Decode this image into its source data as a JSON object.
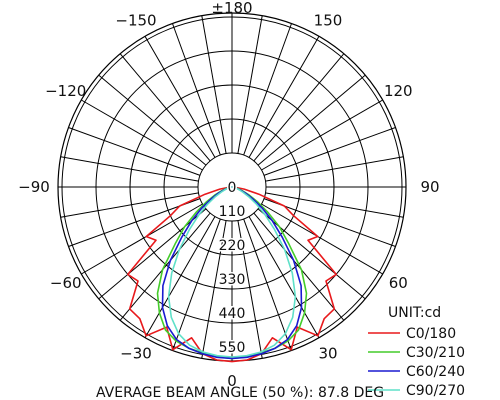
{
  "chart_data": {
    "type": "polar",
    "unit_label": "UNIT:cd",
    "footer": "AVERAGE BEAM ANGLE (50 %): 87.8 DEG",
    "angle_labels": [
      {
        "angle": 180,
        "text": "±180"
      },
      {
        "angle": -150,
        "text": "−150"
      },
      {
        "angle": 150,
        "text": "150"
      },
      {
        "angle": -120,
        "text": "−120"
      },
      {
        "angle": 120,
        "text": "120"
      },
      {
        "angle": -90,
        "text": "−90"
      },
      {
        "angle": 90,
        "text": "90"
      },
      {
        "angle": -60,
        "text": "−60"
      },
      {
        "angle": 60,
        "text": "60"
      },
      {
        "angle": -30,
        "text": "−30"
      },
      {
        "angle": 30,
        "text": "30"
      },
      {
        "angle": 0,
        "text": "0"
      }
    ],
    "radial_ticks": [
      {
        "value": 0,
        "text": "0"
      },
      {
        "value": 110,
        "text": "110"
      },
      {
        "value": 220,
        "text": "220"
      },
      {
        "value": 330,
        "text": "330"
      },
      {
        "value": 440,
        "text": "440"
      },
      {
        "value": 550,
        "text": "550"
      }
    ],
    "rmax": 550,
    "hole_value": 110,
    "angle_step": 10,
    "series": [
      {
        "name": "C0/180",
        "color": "#e8191c",
        "points": [
          [
            0,
            565
          ],
          [
            5,
            562
          ],
          [
            10,
            548
          ],
          [
            15,
            505
          ],
          [
            20,
            560
          ],
          [
            25,
            500
          ],
          [
            30,
            556
          ],
          [
            35,
            520
          ],
          [
            40,
            515
          ],
          [
            45,
            430
          ],
          [
            50,
            440
          ],
          [
            55,
            300
          ],
          [
            60,
            320
          ],
          [
            65,
            220
          ],
          [
            70,
            180
          ],
          [
            75,
            90
          ],
          [
            80,
            40
          ],
          [
            85,
            10
          ],
          [
            90,
            0
          ]
        ]
      },
      {
        "name": "C30/210",
        "color": "#44cc2a",
        "points": [
          [
            0,
            555
          ],
          [
            5,
            552
          ],
          [
            10,
            545
          ],
          [
            15,
            540
          ],
          [
            20,
            530
          ],
          [
            25,
            510
          ],
          [
            30,
            470
          ],
          [
            35,
            420
          ],
          [
            40,
            350
          ],
          [
            45,
            260
          ],
          [
            50,
            200
          ],
          [
            55,
            140
          ],
          [
            60,
            95
          ],
          [
            65,
            60
          ],
          [
            70,
            35
          ],
          [
            75,
            18
          ],
          [
            80,
            8
          ],
          [
            85,
            3
          ],
          [
            90,
            0
          ]
        ]
      },
      {
        "name": "C60/240",
        "color": "#1a1ad0",
        "points": [
          [
            0,
            555
          ],
          [
            5,
            553
          ],
          [
            10,
            548
          ],
          [
            15,
            540
          ],
          [
            20,
            525
          ],
          [
            25,
            495
          ],
          [
            30,
            450
          ],
          [
            35,
            390
          ],
          [
            40,
            310
          ],
          [
            45,
            230
          ],
          [
            50,
            170
          ],
          [
            55,
            120
          ],
          [
            60,
            80
          ],
          [
            65,
            50
          ],
          [
            70,
            28
          ],
          [
            75,
            14
          ],
          [
            80,
            6
          ],
          [
            85,
            2
          ],
          [
            90,
            0
          ]
        ]
      },
      {
        "name": "C90/270",
        "color": "#5fe0c8",
        "points": [
          [
            0,
            550
          ],
          [
            5,
            548
          ],
          [
            10,
            542
          ],
          [
            15,
            530
          ],
          [
            20,
            505
          ],
          [
            25,
            465
          ],
          [
            30,
            410
          ],
          [
            35,
            340
          ],
          [
            40,
            265
          ],
          [
            45,
            195
          ],
          [
            50,
            140
          ],
          [
            55,
            95
          ],
          [
            60,
            62
          ],
          [
            65,
            38
          ],
          [
            70,
            22
          ],
          [
            75,
            11
          ],
          [
            80,
            5
          ],
          [
            85,
            2
          ],
          [
            90,
            0
          ]
        ]
      }
    ]
  }
}
